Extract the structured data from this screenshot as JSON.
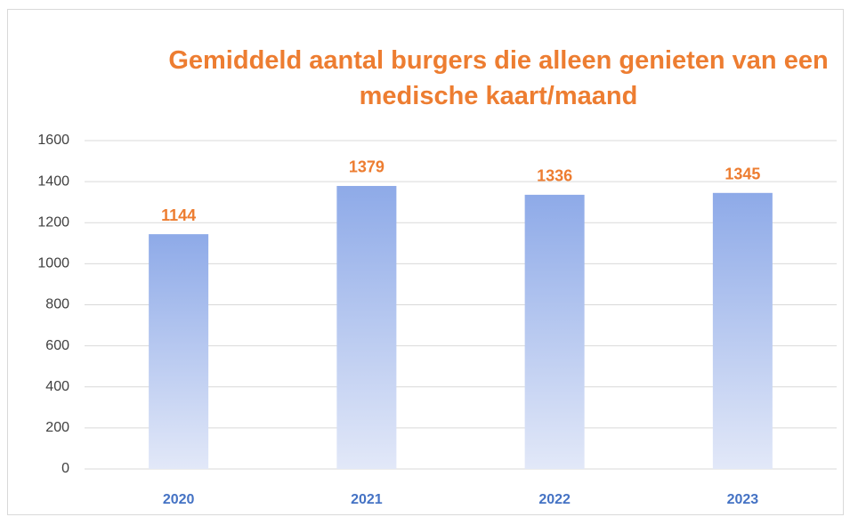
{
  "chart_data": {
    "type": "bar",
    "title": "Gemiddeld aantal burgers die alleen genieten van een medische kaart/maand",
    "categories": [
      "2020",
      "2021",
      "2022",
      "2023"
    ],
    "values": [
      1144,
      1379,
      1336,
      1345
    ],
    "ylim": [
      0,
      1600
    ],
    "yticks": [
      0,
      200,
      400,
      600,
      800,
      1000,
      1200,
      1400,
      1600
    ],
    "grid": true
  }
}
